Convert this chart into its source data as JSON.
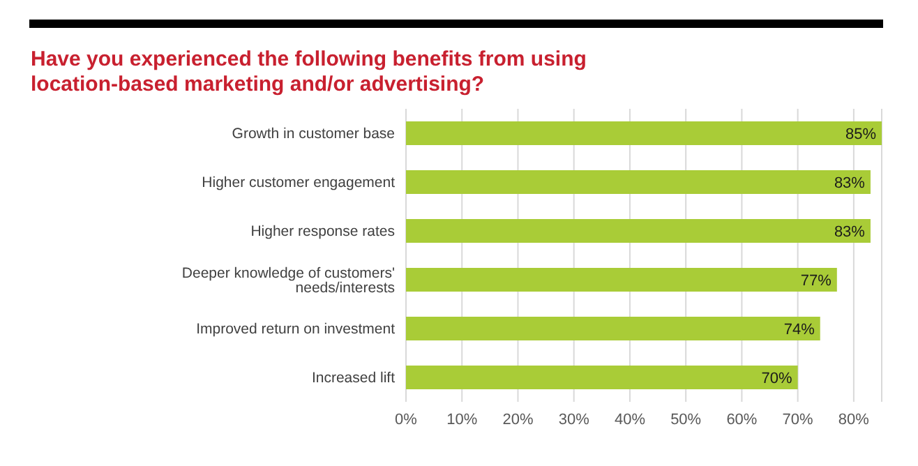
{
  "chart_data": {
    "type": "bar",
    "orientation": "horizontal",
    "title": "Have you experienced the following benefits from using location-based marketing and/or advertising?",
    "categories": [
      "Growth in customer base",
      "Higher customer engagement",
      "Higher response rates",
      "Deeper knowledge of customers' needs/interests",
      "Improved return on investment",
      "Increased lift"
    ],
    "values": [
      85,
      83,
      83,
      77,
      74,
      70
    ],
    "value_labels": [
      "85%",
      "83%",
      "83%",
      "77%",
      "74%",
      "70%"
    ],
    "color": "#a9cc37",
    "xlim": [
      0,
      85
    ],
    "xticks": [
      {
        "value": 0,
        "label": "0%"
      },
      {
        "value": 10,
        "label": "10%"
      },
      {
        "value": 20,
        "label": "20%"
      },
      {
        "value": 30,
        "label": "30%"
      },
      {
        "value": 40,
        "label": "40%"
      },
      {
        "value": 50,
        "label": "50%"
      },
      {
        "value": 60,
        "label": "60%"
      },
      {
        "value": 70,
        "label": "70%"
      },
      {
        "value": 80,
        "label": "80%"
      }
    ],
    "grid": "x",
    "legend": false
  }
}
